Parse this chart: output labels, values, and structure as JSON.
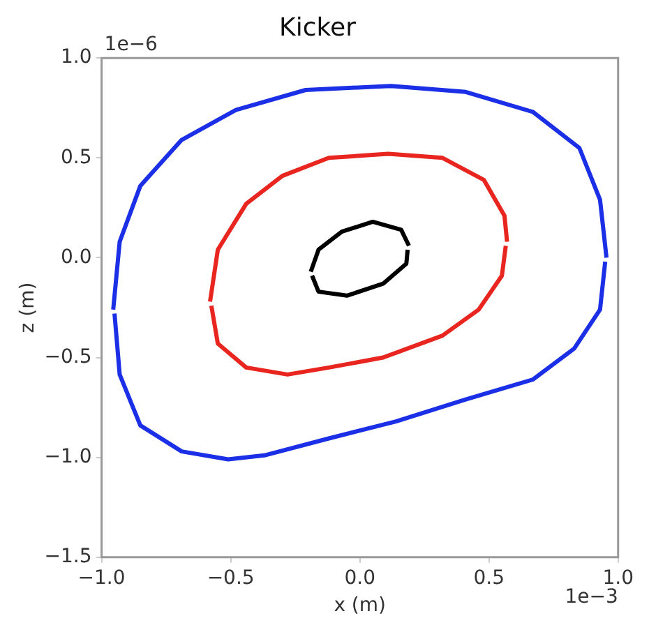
{
  "chart_data": {
    "type": "line",
    "title": "Kicker",
    "xlabel": "x (m)",
    "ylabel": "z (m)",
    "annotations": [
      "1e−6",
      "1e−3"
    ],
    "xlim": [
      -1,
      1
    ],
    "ylim": [
      -1.5,
      1
    ],
    "xticks": [
      {
        "value": -1,
        "label": "−1.0"
      },
      {
        "value": -0.5,
        "label": "−0.5"
      },
      {
        "value": 0,
        "label": "0.0"
      },
      0.5,
      {
        "value": 1,
        "label": "1.0"
      }
    ],
    "yticks": [
      {
        "value": -1.5,
        "label": "−1.5"
      },
      {
        "value": -1,
        "label": "−1.0"
      },
      {
        "value": -0.5,
        "label": "−0.5"
      },
      {
        "value": 0,
        "label": "0.0"
      },
      0.5,
      {
        "value": 1,
        "label": "1.0"
      }
    ],
    "grid": false,
    "marker": "none",
    "line_style": "solid",
    "series": [
      {
        "color": "#1a2fe6",
        "x": [
          -0.955,
          -0.93,
          -0.85,
          -0.69,
          -0.48,
          -0.21,
          0.12,
          0.41,
          0.67,
          0.85,
          0.93,
          0.955
        ],
        "values": [
          -0.26,
          0.08,
          0.36,
          0.59,
          0.74,
          0.84,
          0.86,
          0.83,
          0.73,
          0.55,
          0.29,
          0.0
        ]
      },
      {
        "color": "#1a2fe6",
        "x": [
          -0.95,
          -0.93,
          -0.85,
          -0.69,
          -0.51,
          -0.37,
          -0.12,
          0.14,
          0.41,
          0.67,
          0.83,
          0.93,
          0.95
        ],
        "values": [
          -0.28,
          -0.585,
          -0.84,
          -0.97,
          -1.01,
          -0.99,
          -0.905,
          -0.82,
          -0.71,
          -0.61,
          -0.455,
          -0.26,
          -0.02
        ]
      },
      {
        "color": "#e8251e",
        "x": [
          -0.58,
          -0.55,
          -0.44,
          -0.3,
          -0.12,
          0.11,
          0.32,
          0.48,
          0.56,
          0.57
        ],
        "values": [
          -0.22,
          0.04,
          0.27,
          0.41,
          0.5,
          0.52,
          0.5,
          0.39,
          0.21,
          0.08
        ]
      },
      {
        "color": "#e8251e",
        "x": [
          -0.575,
          -0.55,
          -0.44,
          -0.28,
          -0.12,
          0.09,
          0.32,
          0.46,
          0.55,
          0.565
        ],
        "values": [
          -0.24,
          -0.43,
          -0.55,
          -0.585,
          -0.55,
          -0.5,
          -0.39,
          -0.26,
          -0.09,
          0.06
        ]
      },
      {
        "color": "#000000",
        "x": [
          -0.19,
          -0.16,
          -0.07,
          0.05,
          0.16,
          0.19
        ],
        "values": [
          -0.07,
          0.04,
          0.13,
          0.18,
          0.14,
          0.06
        ]
      },
      {
        "color": "#000000",
        "x": [
          -0.185,
          -0.16,
          -0.05,
          0.09,
          0.18,
          0.185
        ],
        "values": [
          -0.09,
          -0.17,
          -0.19,
          -0.13,
          -0.03,
          0.04
        ]
      }
    ]
  }
}
